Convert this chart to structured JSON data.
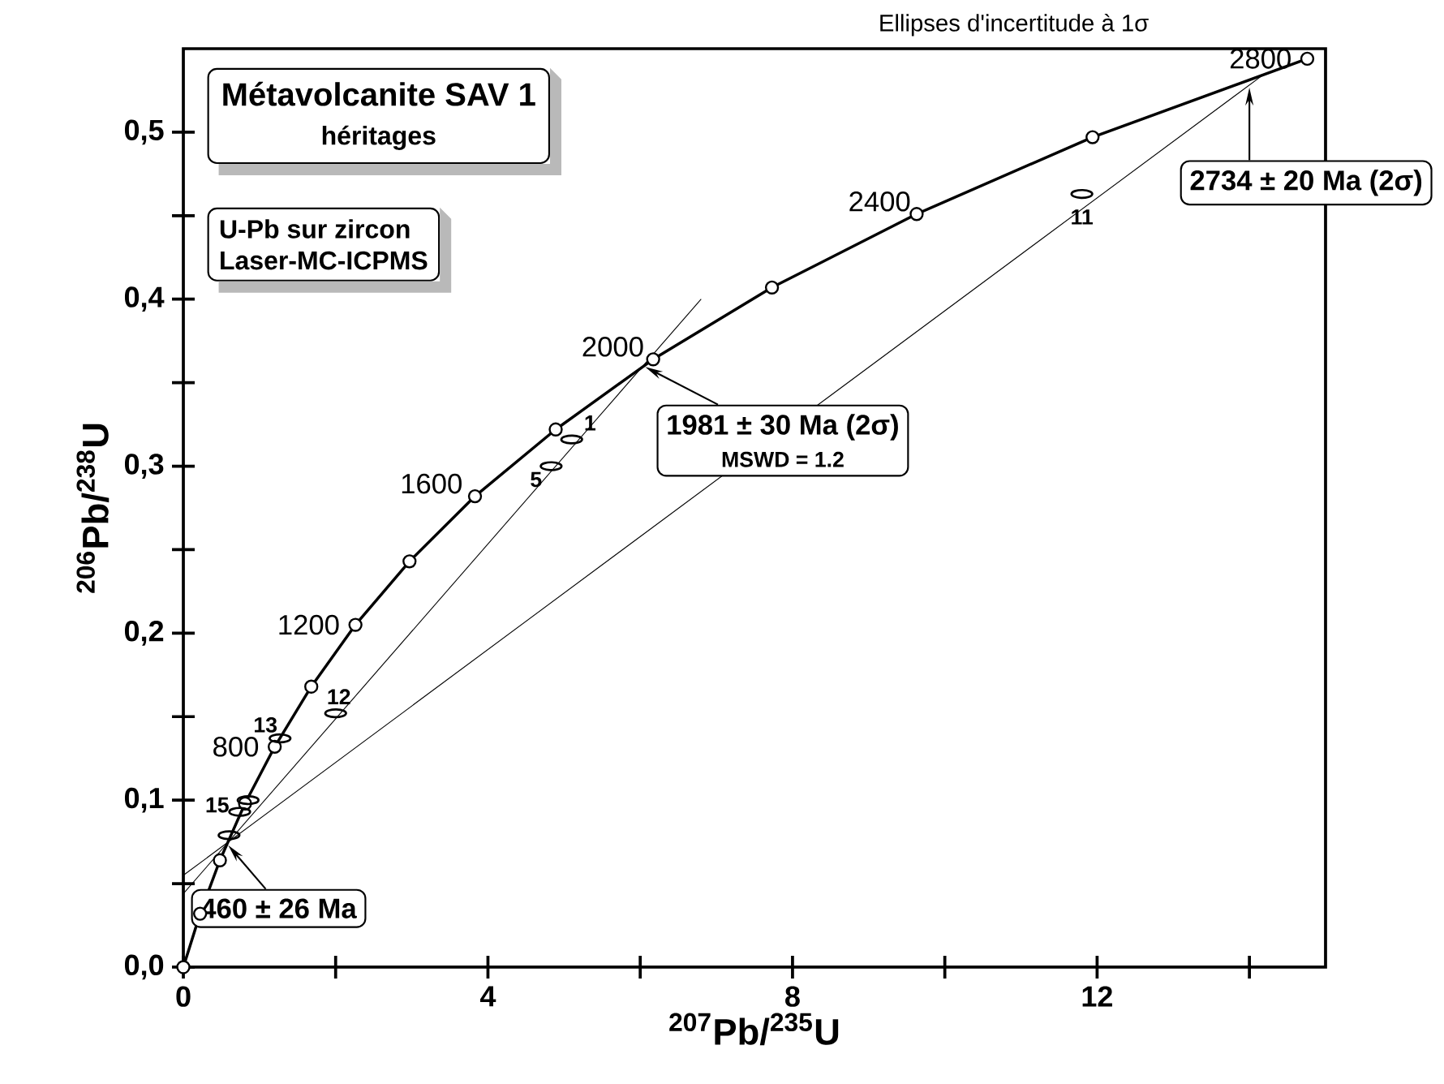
{
  "chart_data": {
    "type": "line",
    "title": "Métavolcanite SAV 1",
    "subtitle": "héritages",
    "xlabel": "$^{207}$Pb/$^{235}$U",
    "ylabel": "$^{206}$Pb/$^{238}$U",
    "xlim": [
      0,
      15
    ],
    "ylim": [
      0,
      0.55
    ],
    "xticks": [
      0,
      {
        "value": 2,
        "label": null
      },
      4,
      {
        "value": 6,
        "label": null
      },
      8,
      {
        "value": 10,
        "label": null
      },
      12,
      {
        "value": 14,
        "label": null
      }
    ],
    "yticks": [
      {
        "value": 0,
        "label": "0,0"
      },
      {
        "value": 0.05,
        "label": null
      },
      {
        "value": 0.1,
        "label": "0,1"
      },
      {
        "value": 0.15,
        "label": null
      },
      {
        "value": 0.2,
        "label": "0,2"
      },
      {
        "value": 0.25,
        "label": null
      },
      {
        "value": 0.3,
        "label": "0,3"
      },
      {
        "value": 0.35,
        "label": null
      },
      {
        "value": 0.4,
        "label": "0,4"
      },
      {
        "value": 0.45,
        "label": null
      },
      {
        "value": 0.5,
        "label": "0,5"
      }
    ],
    "series": [
      {
        "marker": "circle",
        "color": "#000000",
        "x": [
          0,
          0.22,
          0.48,
          0.81,
          1.2,
          1.68,
          2.26,
          2.97,
          3.83,
          4.89,
          6.17,
          7.73,
          9.63,
          11.94,
          14.76
        ],
        "values": [
          0,
          0.032,
          0.064,
          0.098,
          0.132,
          0.168,
          0.205,
          0.243,
          0.282,
          0.322,
          0.364,
          0.407,
          0.451,
          0.497,
          0.544
        ]
      },
      {
        "marker": "none",
        "color": "#000000",
        "x": [
          0,
          6.8
        ],
        "values": [
          0.044,
          0.4
        ]
      },
      {
        "marker": "none",
        "color": "#000000",
        "x": [
          0,
          14.2
        ],
        "values": [
          0.055,
          0.535
        ]
      },
      {
        "type": "scatter",
        "marker": "circle",
        "color": "#000000",
        "x": [
          5.1,
          4.83,
          11.8,
          2.0,
          1.27,
          0.85,
          0.74,
          0.6
        ],
        "values": [
          0.316,
          0.3,
          0.463,
          0.152,
          0.137,
          0.1,
          0.093,
          0.079
        ]
      }
    ],
    "annotations": [
      {
        "text": "460 ± 26 Ma",
        "x": 0.57,
        "y": 0.074
      },
      {
        "text": "1981 ± 30 Ma (2σ)",
        "x": 6.04,
        "y": 0.36
      },
      "MSWD = 1.2",
      {
        "text": "2734 ± 20 Ma (2σ)",
        "x": 14.0,
        "y": 0.528
      },
      "U-Pb sur zircon",
      "Laser-MC-ICPMS",
      "Ellipses d'incertitude à 1σ",
      {
        "text": "800",
        "x": 1.2,
        "y": 0.132
      },
      {
        "text": "1200",
        "x": 2.26,
        "y": 0.205
      },
      {
        "text": "1600",
        "x": 3.83,
        "y": 0.282
      },
      {
        "text": "2000",
        "x": 6.17,
        "y": 0.364
      },
      {
        "text": "2400",
        "x": 9.63,
        "y": 0.451
      },
      {
        "text": "2800",
        "x": 14.76,
        "y": 0.544
      },
      {
        "text": "1",
        "x": 5.1,
        "y": 0.316
      },
      {
        "text": "5",
        "x": 4.83,
        "y": 0.3
      },
      {
        "text": "11",
        "x": 11.8,
        "y": 0.463
      },
      {
        "text": "12",
        "x": 2.0,
        "y": 0.152
      },
      {
        "text": "13",
        "x": 1.27,
        "y": 0.137
      },
      {
        "text": "15",
        "x": 0.85,
        "y": 0.1
      }
    ]
  }
}
